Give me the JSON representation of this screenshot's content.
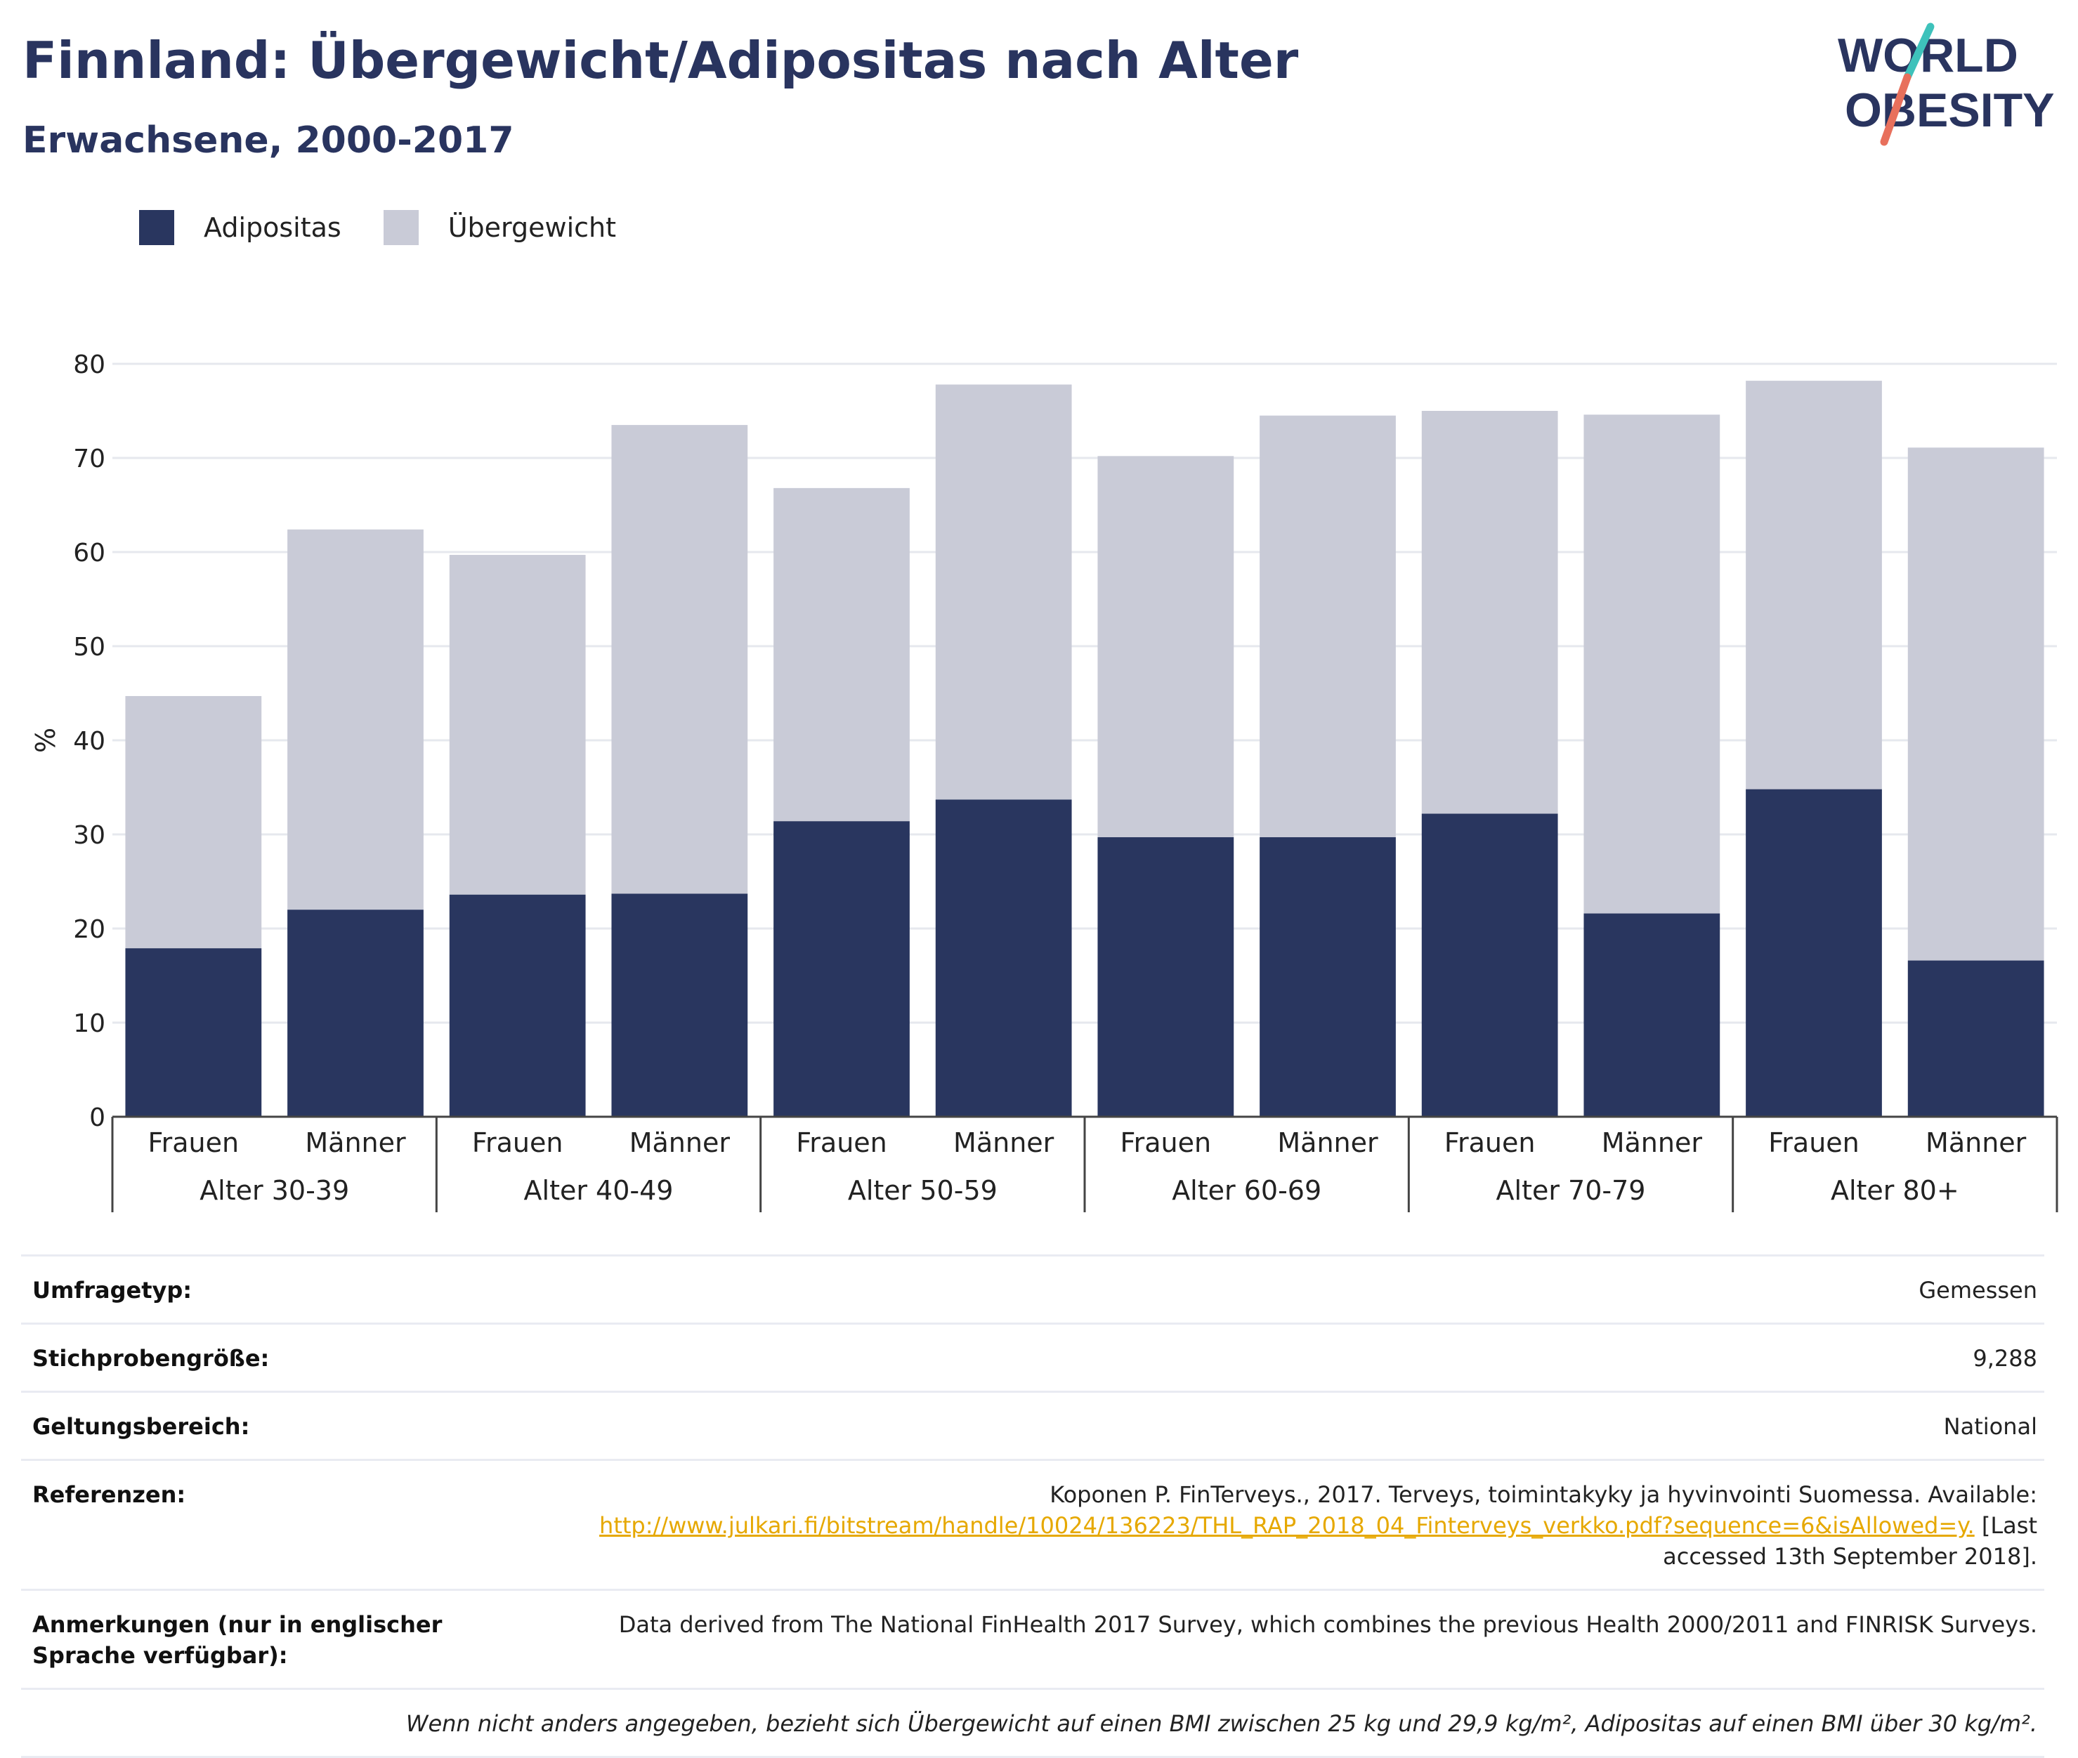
{
  "header": {
    "title": "Finnland: Übergewicht/Adipositas nach Alter",
    "subtitle": "Erwachsene, 2000-2017"
  },
  "logo": {
    "line1": "WORLD",
    "line2": "OBESITY"
  },
  "legend": [
    {
      "label": "Adipositas",
      "color": "#29365f"
    },
    {
      "label": "Übergewicht",
      "color": "#c9cbd7"
    }
  ],
  "chart_data": {
    "type": "bar",
    "stacked": true,
    "ylabel": "%",
    "ylim": [
      0,
      80
    ],
    "yticks": [
      0,
      10,
      20,
      30,
      40,
      50,
      60,
      70,
      80
    ],
    "grid": true,
    "groups": [
      "Alter 30-39",
      "Alter 40-49",
      "Alter 50-59",
      "Alter 60-69",
      "Alter 70-79",
      "Alter 80+"
    ],
    "categories": [
      "Frauen",
      "Männer",
      "Frauen",
      "Männer",
      "Frauen",
      "Männer",
      "Frauen",
      "Männer",
      "Frauen",
      "Männer",
      "Frauen",
      "Männer"
    ],
    "series": [
      {
        "name": "Adipositas",
        "color": "#29365f",
        "values": [
          17.9,
          22.0,
          23.6,
          23.7,
          31.4,
          33.7,
          29.7,
          29.7,
          32.2,
          21.6,
          34.8,
          16.6
        ]
      },
      {
        "name": "Übergewicht",
        "color": "#c9cbd7",
        "values": [
          26.8,
          40.4,
          36.1,
          49.8,
          35.4,
          44.1,
          40.5,
          44.8,
          42.8,
          53.0,
          43.4,
          54.5
        ]
      }
    ]
  },
  "info_table": {
    "survey_type": {
      "label": "Umfragetyp:",
      "value": "Gemessen"
    },
    "sample_size": {
      "label": "Stichprobengröße:",
      "value": "9,288"
    },
    "scope": {
      "label": "Geltungsbereich:",
      "value": "National"
    },
    "references": {
      "label": "Referenzen:",
      "text_before": "Koponen P. FinTerveys., 2017. Terveys, toimintakyky ja hyvinvointi Suomessa. Available:",
      "link": "http://www.julkari.fi/bitstream/handle/10024/136223/THL_RAP_2018_04_Finterveys_verkko.pdf?sequence=6&isAllowed=y.",
      "text_after_1": "[Last",
      "text_after_2": "accessed 13th September 2018]."
    },
    "notes": {
      "label": "Anmerkungen (nur in englischer Sprache verfügbar):",
      "value": "Data derived from The National FinHealth 2017 Survey, which combines the previous Health 2000/2011 and FINRISK Surveys."
    },
    "footnote": "Wenn nicht anders angegeben, bezieht sich Übergewicht auf einen BMI zwischen 25 kg und 29,9 kg/m², Adipositas auf einen BMI über 30 kg/m²."
  }
}
